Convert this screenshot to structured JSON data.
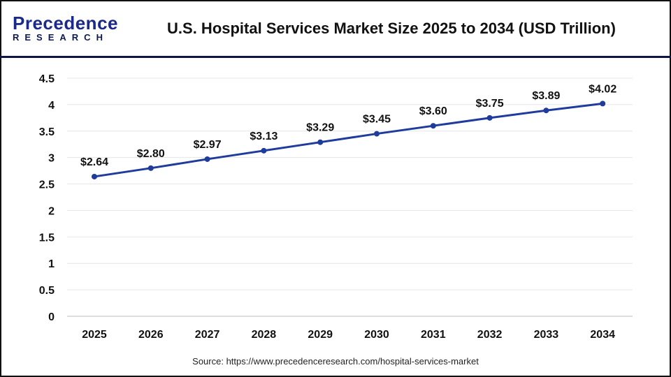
{
  "logo": {
    "top": "Precedence",
    "bottom": "RESEARCH"
  },
  "title": "U.S. Hospital Services Market Size 2025 to 2034 (USD Trillion)",
  "source": "Source: https://www.precedenceresearch.com/hospital-services-market",
  "chart_data": {
    "type": "line",
    "title": "U.S. Hospital Services Market Size 2025 to 2034 (USD Trillion)",
    "categories": [
      "2025",
      "2026",
      "2027",
      "2028",
      "2029",
      "2030",
      "2031",
      "2032",
      "2033",
      "2034"
    ],
    "values": [
      2.64,
      2.8,
      2.97,
      3.13,
      3.29,
      3.45,
      3.6,
      3.75,
      3.89,
      4.02
    ],
    "data_labels": [
      "$2.64",
      "$2.80",
      "$2.97",
      "$3.13",
      "$3.29",
      "$3.45",
      "$3.60",
      "$3.75",
      "$3.89",
      "$4.02"
    ],
    "yticks": [
      "0",
      "0.5",
      "1",
      "1.5",
      "2",
      "2.5",
      "3",
      "3.5",
      "4",
      "4.5"
    ],
    "ylim": [
      0,
      4.5
    ],
    "grid": true,
    "line_color": "#1f3c9c"
  }
}
